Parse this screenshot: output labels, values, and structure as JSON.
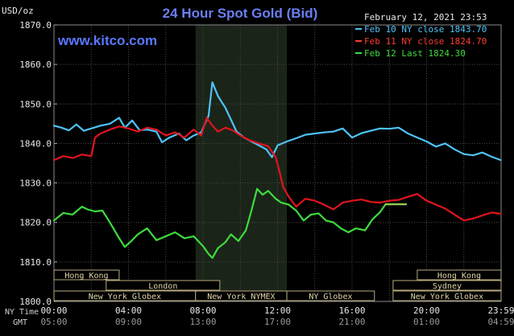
{
  "chart_data": {
    "type": "line",
    "title": "24 Hour Spot Gold (Bid)",
    "site": "www.kitco.com",
    "date": "February 12, 2021 23:53",
    "unit": "USD/oz",
    "ylim": [
      1800,
      1870
    ],
    "yticks": [
      "1870.0",
      "1860.0",
      "1850.0",
      "1840.0",
      "1830.0",
      "1820.0",
      "1810.0",
      "1800.0"
    ],
    "ytick_values": [
      1870,
      1860,
      1850,
      1840,
      1830,
      1820,
      1810,
      1800
    ],
    "xlim": [
      0,
      24
    ],
    "xtick_values": [
      0,
      4,
      8,
      12,
      16,
      20,
      24
    ],
    "xticks_ny": [
      "00:00",
      "04:00",
      "08:00",
      "12:00",
      "16:00",
      "20:00",
      "23:59"
    ],
    "xticks_gmt": [
      "05:00",
      "09:00",
      "13:00",
      "17:00",
      "21:00",
      "01:00",
      "04:59"
    ],
    "row_labels": [
      "NY Time",
      "GMT"
    ],
    "grid": true,
    "highlight_range": [
      7.6,
      12.5
    ],
    "colors": {
      "feb10": "#4fc3f7",
      "feb11": "#e0141e",
      "feb12": "#3ddc3d",
      "feb12_flat": "#93d150",
      "title": "#6b7ef0",
      "site": "#5a78ff"
    },
    "legend": [
      {
        "text": "Feb 10 NY close 1843.70",
        "color": "#4fc3f7"
      },
      {
        "text": "Feb 11 NY close 1824.70",
        "color": "#ff3b30"
      },
      {
        "text": "Feb 12 Last 1824.30",
        "color": "#3ddc3d"
      }
    ],
    "series": [
      {
        "name": "Feb 10 NY close 1843.70",
        "key": "feb10",
        "points": [
          [
            0,
            1844.5
          ],
          [
            0.4,
            1844
          ],
          [
            0.8,
            1843.3
          ],
          [
            1.2,
            1844.8
          ],
          [
            1.6,
            1843.2
          ],
          [
            2,
            1843.8
          ],
          [
            2.5,
            1844.5
          ],
          [
            3,
            1845
          ],
          [
            3.5,
            1846.5
          ],
          [
            3.8,
            1844
          ],
          [
            4.2,
            1845.8
          ],
          [
            4.6,
            1843.3
          ],
          [
            5,
            1843.5
          ],
          [
            5.5,
            1843
          ],
          [
            5.8,
            1840.3
          ],
          [
            6.2,
            1841.5
          ],
          [
            6.7,
            1842.5
          ],
          [
            7.1,
            1840.8
          ],
          [
            7.5,
            1842
          ],
          [
            7.9,
            1842.8
          ],
          [
            8.3,
            1847
          ],
          [
            8.5,
            1855.5
          ],
          [
            8.8,
            1852
          ],
          [
            9.2,
            1849
          ],
          [
            9.5,
            1846
          ],
          [
            9.8,
            1843
          ],
          [
            10.2,
            1841.5
          ],
          [
            10.6,
            1840.5
          ],
          [
            11,
            1839.5
          ],
          [
            11.4,
            1838.5
          ],
          [
            11.7,
            1836.5
          ],
          [
            12,
            1839.5
          ],
          [
            12.5,
            1840.5
          ],
          [
            13,
            1841.3
          ],
          [
            13.5,
            1842.2
          ],
          [
            14,
            1842.5
          ],
          [
            14.5,
            1842.8
          ],
          [
            15,
            1843
          ],
          [
            15.5,
            1843.8
          ],
          [
            16,
            1841.5
          ],
          [
            16.5,
            1842.6
          ],
          [
            17,
            1843.2
          ],
          [
            17.5,
            1843.8
          ],
          [
            18,
            1843.7
          ],
          [
            18.5,
            1844
          ],
          [
            19,
            1842.5
          ],
          [
            19.5,
            1841.5
          ],
          [
            20,
            1840.5
          ],
          [
            20.5,
            1839.2
          ],
          [
            21,
            1840
          ],
          [
            21.5,
            1838.5
          ],
          [
            22,
            1837.3
          ],
          [
            22.5,
            1837
          ],
          [
            23,
            1837.7
          ],
          [
            23.5,
            1836.6
          ],
          [
            23.98,
            1835.8
          ]
        ]
      },
      {
        "name": "Feb 11 NY close 1824.70",
        "key": "feb11",
        "points": [
          [
            0,
            1835.8
          ],
          [
            0.5,
            1836.8
          ],
          [
            1,
            1836.3
          ],
          [
            1.5,
            1837.2
          ],
          [
            2,
            1836.8
          ],
          [
            2.2,
            1841.5
          ],
          [
            2.5,
            1842.5
          ],
          [
            3,
            1843.5
          ],
          [
            3.5,
            1844.3
          ],
          [
            4,
            1843.8
          ],
          [
            4.5,
            1843
          ],
          [
            5,
            1844
          ],
          [
            5.5,
            1843.5
          ],
          [
            6,
            1842
          ],
          [
            6.5,
            1842.8
          ],
          [
            7,
            1841.5
          ],
          [
            7.5,
            1843.5
          ],
          [
            7.9,
            1842
          ],
          [
            8.2,
            1846.5
          ],
          [
            8.5,
            1844.5
          ],
          [
            8.8,
            1843
          ],
          [
            9.2,
            1844
          ],
          [
            9.6,
            1843.3
          ],
          [
            10,
            1842
          ],
          [
            10.5,
            1840.8
          ],
          [
            11,
            1840
          ],
          [
            11.5,
            1839.3
          ],
          [
            11.9,
            1836.5
          ],
          [
            12.1,
            1833
          ],
          [
            12.3,
            1829
          ],
          [
            12.6,
            1826.5
          ],
          [
            13,
            1824
          ],
          [
            13.5,
            1826
          ],
          [
            14,
            1825.5
          ],
          [
            14.5,
            1824.5
          ],
          [
            15,
            1823.3
          ],
          [
            15.5,
            1825
          ],
          [
            16,
            1825.5
          ],
          [
            16.5,
            1825.8
          ],
          [
            17,
            1825.2
          ],
          [
            17.5,
            1825
          ],
          [
            18,
            1825.5
          ],
          [
            18.5,
            1825.7
          ],
          [
            19,
            1826.5
          ],
          [
            19.5,
            1827.2
          ],
          [
            20,
            1825.5
          ],
          [
            20.5,
            1824.5
          ],
          [
            21,
            1823.5
          ],
          [
            21.5,
            1822
          ],
          [
            22,
            1820.5
          ],
          [
            22.5,
            1821
          ],
          [
            23,
            1821.8
          ],
          [
            23.5,
            1822.5
          ],
          [
            23.98,
            1822.2
          ]
        ]
      },
      {
        "name": "Feb 12 Last 1824.30",
        "key": "feb12",
        "points": [
          [
            0,
            1820.5
          ],
          [
            0.5,
            1822.4
          ],
          [
            1,
            1822
          ],
          [
            1.5,
            1824
          ],
          [
            1.8,
            1823.3
          ],
          [
            2.2,
            1822.8
          ],
          [
            2.6,
            1823
          ],
          [
            3,
            1820
          ],
          [
            3.5,
            1816
          ],
          [
            3.8,
            1813.8
          ],
          [
            4.2,
            1815.5
          ],
          [
            4.5,
            1817
          ],
          [
            5,
            1818.5
          ],
          [
            5.5,
            1815.5
          ],
          [
            6,
            1816.5
          ],
          [
            6.5,
            1817.5
          ],
          [
            7,
            1816
          ],
          [
            7.5,
            1816.5
          ],
          [
            8,
            1814
          ],
          [
            8.3,
            1812
          ],
          [
            8.5,
            1811
          ],
          [
            8.8,
            1813.5
          ],
          [
            9.2,
            1815
          ],
          [
            9.5,
            1817
          ],
          [
            9.9,
            1815.3
          ],
          [
            10.3,
            1818
          ],
          [
            10.6,
            1823
          ],
          [
            10.9,
            1828.5
          ],
          [
            11.2,
            1827
          ],
          [
            11.5,
            1828
          ],
          [
            11.9,
            1826
          ],
          [
            12.2,
            1825
          ],
          [
            12.6,
            1824.5
          ],
          [
            13,
            1823
          ],
          [
            13.4,
            1820.5
          ],
          [
            13.8,
            1822
          ],
          [
            14.2,
            1822.3
          ],
          [
            14.6,
            1820.5
          ],
          [
            15,
            1820
          ],
          [
            15.4,
            1818.5
          ],
          [
            15.8,
            1817.5
          ],
          [
            16.2,
            1818.5
          ],
          [
            16.7,
            1818
          ],
          [
            17.1,
            1820.8
          ],
          [
            17.5,
            1822.6
          ],
          [
            17.8,
            1824.6
          ]
        ]
      },
      {
        "name": "Feb 12 Last 1824.30",
        "key": "feb12_flat",
        "points": [
          [
            17.8,
            1824.6
          ],
          [
            18.9,
            1824.6
          ]
        ]
      }
    ],
    "sessions": [
      {
        "name": "Hong Kong",
        "start": 0,
        "end": 3.5,
        "row": 0
      },
      {
        "name": "London",
        "start": 2.8,
        "end": 8.9,
        "row": 1
      },
      {
        "name": "New York Globex",
        "start": 0,
        "end": 7.6,
        "row": 2
      },
      {
        "name": "New York NYMEX",
        "start": 7.6,
        "end": 12.5,
        "row": 2
      },
      {
        "name": "NY Globex",
        "start": 12.5,
        "end": 17.2,
        "row": 2
      },
      {
        "name": "Hong Kong",
        "start": 19.5,
        "end": 24,
        "row": 0
      },
      {
        "name": "Sydney",
        "start": 18.2,
        "end": 24,
        "row": 1
      },
      {
        "name": "New York Globex",
        "start": 18.2,
        "end": 24,
        "row": 2
      }
    ]
  }
}
